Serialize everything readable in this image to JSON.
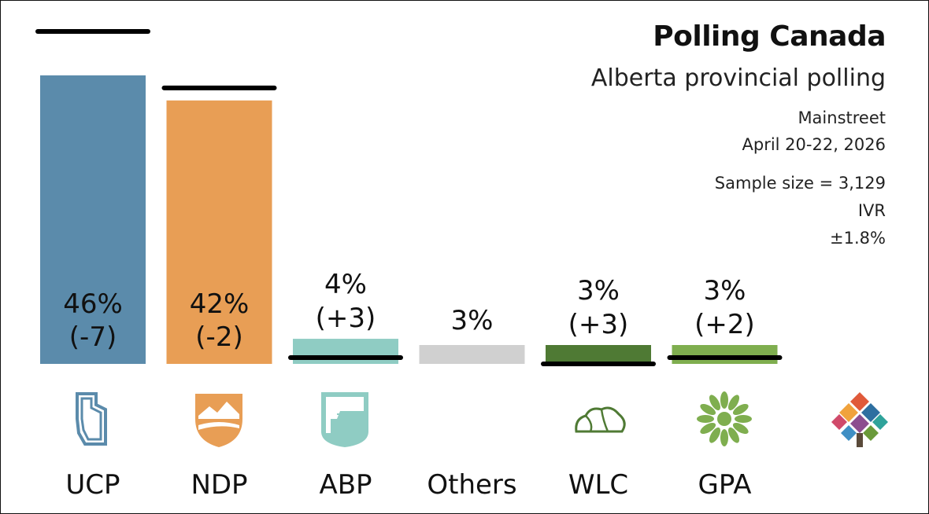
{
  "header": {
    "title": "Polling Canada",
    "subtitle": "Alberta provincial polling",
    "pollster": "Mainstreet",
    "dates": "April 20-22, 2026",
    "sample": "Sample size = 3,129",
    "method": "IVR",
    "margin": "±1.8%"
  },
  "chart_data": {
    "type": "bar",
    "categories": [
      "UCP",
      "NDP",
      "ABP",
      "Others",
      "WLC",
      "GPA"
    ],
    "values": [
      46,
      42,
      4,
      3,
      3,
      3
    ],
    "previous": [
      53,
      44,
      1,
      null,
      0,
      1
    ],
    "change_labels": [
      "(-7)",
      "(-2)",
      "(+3)",
      "",
      "(+3)",
      "(+2)"
    ],
    "value_labels": [
      "46%",
      "42%",
      "4%",
      "3%",
      "3%",
      "3%"
    ],
    "colors": [
      "#5b8bab",
      "#e89e55",
      "#8fccc3",
      "#d0d0d0",
      "#4f7a34",
      "#7fae4f"
    ],
    "title": "Polling Canada",
    "xlabel": "",
    "ylabel": "",
    "ylim": [
      0,
      53
    ],
    "grid": false,
    "legend": "none"
  },
  "logos": [
    "ucp-logo-icon",
    "ndp-logo-icon",
    "abp-logo-icon",
    "wlc-logo-icon",
    "gpa-logo-icon",
    "polling-canada-logo-icon"
  ]
}
